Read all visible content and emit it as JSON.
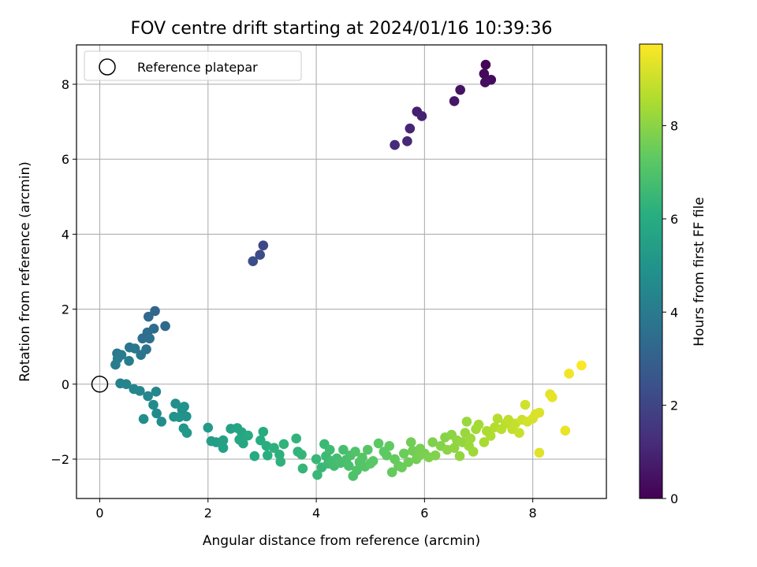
{
  "chart_data": {
    "type": "scatter",
    "title": "FOV centre drift starting at 2024/01/16 10:39:36",
    "xlabel": "Angular distance from reference (arcmin)",
    "ylabel": "Rotation from reference (arcmin)",
    "xlim": [
      -0.43,
      9.36
    ],
    "ylim": [
      -3.05,
      9.05
    ],
    "xticks": [
      0,
      2,
      4,
      6,
      8
    ],
    "yticks": [
      -2,
      0,
      2,
      4,
      6,
      8
    ],
    "grid": true,
    "legend": {
      "placement": "top-left",
      "entries": [
        "Reference platepar"
      ]
    },
    "reference_point": {
      "x": 0,
      "y": 0,
      "label": "Reference platepar"
    },
    "colorbar": {
      "label": "Hours from first FF file",
      "range": [
        0,
        9.75
      ],
      "ticks": [
        0,
        2,
        4,
        6,
        8
      ],
      "colormap": "viridis"
    },
    "points": [
      [
        7.13,
        8.52,
        0.1
      ],
      [
        7.1,
        8.28,
        0.2
      ],
      [
        7.23,
        8.12,
        0.3
      ],
      [
        7.12,
        8.05,
        0.35
      ],
      [
        6.66,
        7.85,
        0.5
      ],
      [
        6.55,
        7.55,
        0.6
      ],
      [
        5.86,
        7.27,
        0.8
      ],
      [
        5.95,
        7.15,
        0.9
      ],
      [
        5.73,
        6.82,
        1.0
      ],
      [
        5.68,
        6.48,
        1.1
      ],
      [
        5.45,
        6.38,
        1.2
      ],
      [
        3.02,
        3.7,
        2.1
      ],
      [
        2.96,
        3.45,
        2.2
      ],
      [
        2.83,
        3.28,
        2.3
      ],
      [
        1.02,
        1.95,
        3.2
      ],
      [
        0.9,
        1.8,
        3.3
      ],
      [
        1.21,
        1.55,
        3.3
      ],
      [
        1.0,
        1.48,
        3.4
      ],
      [
        0.88,
        1.38,
        3.5
      ],
      [
        0.79,
        1.22,
        3.5
      ],
      [
        0.92,
        1.22,
        3.6
      ],
      [
        0.86,
        0.93,
        3.7
      ],
      [
        0.76,
        0.78,
        3.8
      ],
      [
        0.55,
        0.98,
        3.8
      ],
      [
        0.65,
        0.95,
        3.9
      ],
      [
        0.32,
        0.82,
        3.9
      ],
      [
        0.4,
        0.78,
        4.0
      ],
      [
        0.33,
        0.68,
        4.0
      ],
      [
        0.54,
        0.62,
        4.1
      ],
      [
        0.29,
        0.52,
        4.1
      ],
      [
        0.38,
        0.02,
        4.3
      ],
      [
        0.49,
        0.0,
        4.35
      ],
      [
        0.63,
        -0.13,
        4.4
      ],
      [
        0.74,
        -0.18,
        4.45
      ],
      [
        0.89,
        -0.32,
        4.5
      ],
      [
        1.04,
        -0.2,
        4.5
      ],
      [
        0.99,
        -0.55,
        4.6
      ],
      [
        1.05,
        -0.78,
        4.6
      ],
      [
        0.81,
        -0.93,
        4.7
      ],
      [
        1.14,
        -1.0,
        4.7
      ],
      [
        1.4,
        -0.52,
        4.8
      ],
      [
        1.52,
        -0.68,
        4.8
      ],
      [
        1.56,
        -0.6,
        4.9
      ],
      [
        1.6,
        -0.86,
        4.9
      ],
      [
        1.37,
        -0.87,
        5.0
      ],
      [
        1.47,
        -0.88,
        5.0
      ],
      [
        1.55,
        -1.18,
        5.1
      ],
      [
        1.61,
        -1.3,
        5.2
      ],
      [
        2.0,
        -1.16,
        5.3
      ],
      [
        2.06,
        -1.52,
        5.4
      ],
      [
        2.15,
        -1.55,
        5.4
      ],
      [
        2.28,
        -1.5,
        5.5
      ],
      [
        2.25,
        -1.58,
        5.5
      ],
      [
        2.28,
        -1.7,
        5.6
      ],
      [
        2.42,
        -1.19,
        5.6
      ],
      [
        2.54,
        -1.17,
        5.7
      ],
      [
        2.62,
        -1.28,
        5.7
      ],
      [
        2.58,
        -1.48,
        5.8
      ],
      [
        2.65,
        -1.58,
        5.8
      ],
      [
        2.74,
        -1.37,
        5.9
      ],
      [
        2.86,
        -1.92,
        5.9
      ],
      [
        2.97,
        -1.5,
        6.0
      ],
      [
        3.02,
        -1.27,
        6.0
      ],
      [
        3.08,
        -1.65,
        6.1
      ],
      [
        3.1,
        -1.9,
        6.1
      ],
      [
        3.22,
        -1.7,
        6.2
      ],
      [
        3.32,
        -1.88,
        6.2
      ],
      [
        3.34,
        -2.07,
        6.25
      ],
      [
        3.4,
        -1.6,
        6.3
      ],
      [
        3.63,
        -1.45,
        6.3
      ],
      [
        3.66,
        -1.8,
        6.35
      ],
      [
        3.73,
        -1.88,
        6.4
      ],
      [
        3.75,
        -2.25,
        6.4
      ],
      [
        4.0,
        -2.0,
        6.45
      ],
      [
        4.02,
        -2.42,
        6.5
      ],
      [
        4.1,
        -2.22,
        6.5
      ],
      [
        4.15,
        -1.6,
        6.55
      ],
      [
        4.18,
        -1.92,
        6.6
      ],
      [
        4.22,
        -2.12,
        6.6
      ],
      [
        4.25,
        -1.75,
        6.65
      ],
      [
        4.28,
        -2.05,
        6.7
      ],
      [
        4.33,
        -2.18,
        6.7
      ],
      [
        4.38,
        -1.98,
        6.75
      ],
      [
        4.45,
        -2.1,
        6.8
      ],
      [
        4.5,
        -1.75,
        6.8
      ],
      [
        4.55,
        -2.02,
        6.85
      ],
      [
        4.6,
        -2.18,
        6.9
      ],
      [
        4.63,
        -1.9,
        6.9
      ],
      [
        4.68,
        -2.45,
        6.95
      ],
      [
        4.72,
        -1.8,
        7.0
      ],
      [
        4.75,
        -2.3,
        7.0
      ],
      [
        4.8,
        -2.08,
        7.05
      ],
      [
        4.85,
        -1.96,
        7.1
      ],
      [
        4.9,
        -2.2,
        7.1
      ],
      [
        4.95,
        -1.75,
        7.15
      ],
      [
        5.0,
        -2.12,
        7.2
      ],
      [
        5.05,
        -2.05,
        7.2
      ],
      [
        5.15,
        -1.58,
        7.25
      ],
      [
        5.25,
        -1.8,
        7.3
      ],
      [
        5.3,
        -1.9,
        7.3
      ],
      [
        5.35,
        -1.65,
        7.35
      ],
      [
        5.4,
        -2.35,
        7.4
      ],
      [
        5.45,
        -2.0,
        7.4
      ],
      [
        5.52,
        -2.18,
        7.45
      ],
      [
        5.58,
        -2.22,
        7.5
      ],
      [
        5.62,
        -1.85,
        7.5
      ],
      [
        5.7,
        -2.08,
        7.55
      ],
      [
        5.75,
        -1.55,
        7.6
      ],
      [
        5.78,
        -1.78,
        7.6
      ],
      [
        5.85,
        -2.0,
        7.65
      ],
      [
        5.9,
        -1.9,
        7.7
      ],
      [
        5.92,
        -1.72,
        7.7
      ],
      [
        6.0,
        -1.85,
        7.75
      ],
      [
        6.08,
        -1.95,
        7.8
      ],
      [
        6.15,
        -1.55,
        7.8
      ],
      [
        6.2,
        -1.9,
        7.85
      ],
      [
        6.3,
        -1.65,
        7.9
      ],
      [
        6.38,
        -1.42,
        7.95
      ],
      [
        6.42,
        -1.75,
        8.0
      ],
      [
        6.5,
        -1.35,
        8.0
      ],
      [
        6.55,
        -1.7,
        8.05
      ],
      [
        6.6,
        -1.5,
        8.1
      ],
      [
        6.65,
        -1.92,
        8.1
      ],
      [
        6.7,
        -1.55,
        8.15
      ],
      [
        6.75,
        -1.3,
        8.2
      ],
      [
        6.78,
        -1.0,
        8.2
      ],
      [
        6.82,
        -1.65,
        8.25
      ],
      [
        6.85,
        -1.45,
        8.3
      ],
      [
        6.9,
        -1.8,
        8.3
      ],
      [
        6.95,
        -1.2,
        8.35
      ],
      [
        7.0,
        -1.08,
        8.4
      ],
      [
        7.1,
        -1.55,
        8.45
      ],
      [
        7.15,
        -1.25,
        8.5
      ],
      [
        7.22,
        -1.38,
        8.55
      ],
      [
        7.3,
        -1.15,
        8.6
      ],
      [
        7.35,
        -0.92,
        8.65
      ],
      [
        7.42,
        -1.2,
        8.7
      ],
      [
        7.5,
        -1.05,
        8.75
      ],
      [
        7.55,
        -0.95,
        8.8
      ],
      [
        7.62,
        -1.2,
        8.85
      ],
      [
        7.68,
        -1.05,
        8.9
      ],
      [
        7.75,
        -1.3,
        8.95
      ],
      [
        7.8,
        -0.95,
        9.0
      ],
      [
        7.86,
        -0.55,
        9.05
      ],
      [
        7.9,
        -1.0,
        9.1
      ],
      [
        8.0,
        -0.92,
        9.15
      ],
      [
        8.05,
        -0.8,
        9.2
      ],
      [
        8.12,
        -0.76,
        9.25
      ],
      [
        8.12,
        -1.83,
        9.3
      ],
      [
        8.32,
        -0.27,
        9.35
      ],
      [
        8.36,
        -0.35,
        9.4
      ],
      [
        8.6,
        -1.24,
        9.45
      ],
      [
        8.67,
        0.28,
        9.55
      ],
      [
        8.9,
        0.5,
        9.7
      ]
    ]
  }
}
